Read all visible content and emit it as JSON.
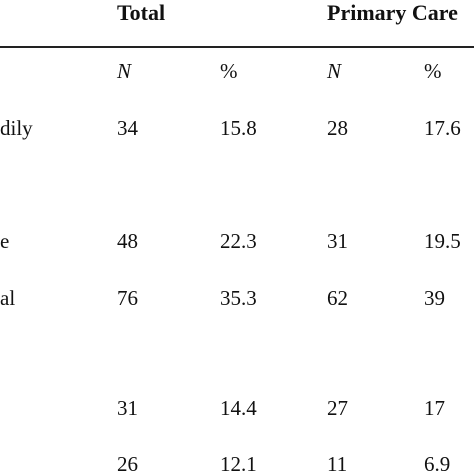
{
  "table": {
    "group_headers": {
      "total": "Total",
      "primary_care": "Primary Care"
    },
    "sub_headers": {
      "total_n": "N",
      "total_pct": "%",
      "pc_n": "N",
      "pc_pct": "%"
    },
    "rows": [
      {
        "label": "dily",
        "total_n": "34",
        "total_pct": "15.8",
        "pc_n": "28",
        "pc_pct": "17.6"
      },
      {
        "label": "e",
        "total_n": "48",
        "total_pct": "22.3",
        "pc_n": "31",
        "pc_pct": "19.5"
      },
      {
        "label": "al",
        "total_n": "76",
        "total_pct": "35.3",
        "pc_n": "62",
        "pc_pct": "39"
      },
      {
        "label": "",
        "total_n": "31",
        "total_pct": "14.4",
        "pc_n": "27",
        "pc_pct": "17"
      },
      {
        "label": "",
        "total_n": "26",
        "total_pct": "12.1",
        "pc_n": "11",
        "pc_pct": "6.9"
      }
    ]
  }
}
